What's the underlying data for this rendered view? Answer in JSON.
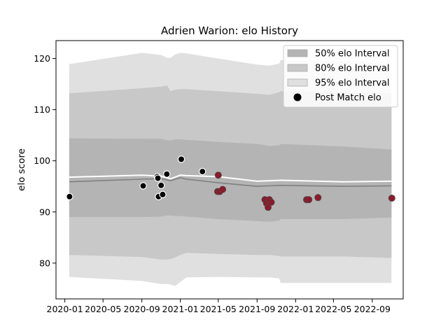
{
  "chart_data": {
    "type": "line",
    "title": "Adrien Warion: elo History",
    "xlabel": "",
    "ylabel": "elo score",
    "x_ticks": [
      "2020-01",
      "2020-05",
      "2020-09",
      "2021-01",
      "2021-05",
      "2021-09",
      "2022-01",
      "2022-05",
      "2022-09"
    ],
    "y_ticks": [
      80,
      90,
      100,
      110,
      120
    ],
    "ylim": [
      73,
      123.5
    ],
    "xlim": [
      "2019-12-04",
      "2022-12-08"
    ],
    "legend_position": "top-right",
    "grid": false,
    "colors": {
      "band_50": "#b4b4b4",
      "band_80": "#c8c8c8",
      "band_95": "#e0e0e0",
      "median_line": "#808080",
      "post_match_line": "#ffffff",
      "point_win": "#000000",
      "point_loss": "#8b1a2b"
    },
    "series": [
      {
        "name": "95% elo Interval",
        "kind": "band",
        "x": [
          "2020-01-15",
          "2020-09-01",
          "2020-11-01",
          "2020-11-20",
          "2020-12-01",
          "2020-12-15",
          "2021-01-01",
          "2021-01-20",
          "2021-05-01",
          "2021-09-01",
          "2021-10-10",
          "2021-11-10",
          "2021-11-15",
          "2022-06-01",
          "2022-11-01"
        ],
        "upper": [
          118.9,
          121.1,
          120.7,
          120.1,
          120.1,
          120.8,
          121.1,
          121.0,
          120.0,
          118.8,
          118.6,
          119.0,
          119.7,
          119.5,
          118.9
        ],
        "lower": [
          77.3,
          76.5,
          75.9,
          75.9,
          75.8,
          75.5,
          76.3,
          77.2,
          77.3,
          77.2,
          77.2,
          77.0,
          76.1,
          76.1,
          76.1
        ]
      },
      {
        "name": "80% elo Interval",
        "kind": "band",
        "x": [
          "2020-01-15",
          "2020-09-01",
          "2020-11-01",
          "2020-11-20",
          "2020-12-01",
          "2020-12-15",
          "2021-01-01",
          "2021-01-20",
          "2021-05-01",
          "2021-09-01",
          "2021-10-10",
          "2021-11-10",
          "2021-11-15",
          "2022-06-01",
          "2022-11-01"
        ],
        "upper": [
          113.2,
          114.2,
          114.5,
          114.7,
          113.6,
          113.9,
          114.0,
          114.0,
          113.6,
          113.1,
          112.9,
          113.4,
          113.6,
          113.4,
          113.2
        ],
        "lower": [
          81.6,
          81.2,
          80.7,
          80.7,
          80.8,
          81.1,
          81.6,
          82.0,
          81.8,
          81.6,
          81.6,
          81.4,
          81.3,
          81.3,
          81.0
        ]
      },
      {
        "name": "50% elo Interval",
        "kind": "band",
        "x": [
          "2020-01-15",
          "2020-09-01",
          "2020-11-01",
          "2020-11-20",
          "2020-12-01",
          "2020-12-15",
          "2021-01-01",
          "2021-01-20",
          "2021-05-01",
          "2021-09-01",
          "2021-10-10",
          "2021-11-10",
          "2021-11-15",
          "2022-06-01",
          "2022-11-01"
        ],
        "upper": [
          104.4,
          104.3,
          104.3,
          104.0,
          104.0,
          104.2,
          104.2,
          104.1,
          103.7,
          103.3,
          102.9,
          103.0,
          103.3,
          102.8,
          102.2
        ],
        "lower": [
          89.0,
          89.0,
          89.1,
          89.3,
          89.3,
          89.2,
          89.2,
          89.1,
          88.6,
          88.2,
          88.1,
          88.3,
          88.6,
          88.6,
          88.9
        ]
      },
      {
        "name": "",
        "kind": "line",
        "color": "#808080",
        "x": [
          "2020-01-15",
          "2020-09-01",
          "2020-11-01",
          "2020-12-01",
          "2021-01-01",
          "2021-01-20",
          "2021-05-01",
          "2021-09-01",
          "2021-11-15",
          "2022-06-01",
          "2022-11-01"
        ],
        "y": [
          95.9,
          96.4,
          96.5,
          96.1,
          96.7,
          96.4,
          95.7,
          95.0,
          95.2,
          95.0,
          95.1
        ]
      },
      {
        "name": "",
        "kind": "line",
        "color": "#ffffff",
        "x": [
          "2020-01-15",
          "2020-09-01",
          "2020-11-01",
          "2020-12-01",
          "2021-01-01",
          "2021-01-20",
          "2021-05-01",
          "2021-09-01",
          "2021-11-15",
          "2022-06-01",
          "2022-11-01"
        ],
        "y": [
          96.8,
          97.2,
          97.0,
          96.5,
          97.2,
          97.1,
          96.9,
          96.0,
          96.2,
          95.9,
          96.0
        ]
      },
      {
        "name": "Post Match elo",
        "kind": "scatter",
        "points": [
          {
            "x": "2020-01-16",
            "y": 93.0,
            "result": "win"
          },
          {
            "x": "2020-09-05",
            "y": 95.1,
            "result": "win"
          },
          {
            "x": "2020-10-20",
            "y": 96.9,
            "result": "win"
          },
          {
            "x": "2020-10-22",
            "y": 96.6,
            "result": "win"
          },
          {
            "x": "2020-10-24",
            "y": 93.0,
            "result": "win"
          },
          {
            "x": "2020-11-01",
            "y": 95.2,
            "result": "win"
          },
          {
            "x": "2020-11-06",
            "y": 93.4,
            "result": "win"
          },
          {
            "x": "2020-11-19",
            "y": 97.4,
            "result": "win"
          },
          {
            "x": "2021-01-04",
            "y": 100.3,
            "result": "win"
          },
          {
            "x": "2021-03-12",
            "y": 97.9,
            "result": "win"
          },
          {
            "x": "2021-05-01",
            "y": 97.2,
            "result": "loss"
          },
          {
            "x": "2021-04-29",
            "y": 94.0,
            "result": "loss"
          },
          {
            "x": "2021-05-06",
            "y": 94.0,
            "result": "loss"
          },
          {
            "x": "2021-05-15",
            "y": 94.4,
            "result": "loss"
          },
          {
            "x": "2021-09-26",
            "y": 92.4,
            "result": "loss"
          },
          {
            "x": "2021-10-01",
            "y": 91.7,
            "result": "loss"
          },
          {
            "x": "2021-10-06",
            "y": 90.9,
            "result": "loss"
          },
          {
            "x": "2021-10-10",
            "y": 92.4,
            "result": "loss"
          },
          {
            "x": "2021-10-16",
            "y": 91.9,
            "result": "loss"
          },
          {
            "x": "2022-02-05",
            "y": 92.4,
            "result": "loss"
          },
          {
            "x": "2022-02-12",
            "y": 92.4,
            "result": "loss"
          },
          {
            "x": "2022-03-13",
            "y": 92.8,
            "result": "loss"
          },
          {
            "x": "2022-11-02",
            "y": 92.7,
            "result": "loss"
          }
        ]
      }
    ],
    "legend": [
      {
        "label": "50% elo Interval",
        "swatch": "band_50"
      },
      {
        "label": "80% elo Interval",
        "swatch": "band_80"
      },
      {
        "label": "95% elo Interval",
        "swatch": "band_95"
      },
      {
        "label": "Post Match elo",
        "swatch": "marker"
      }
    ]
  }
}
